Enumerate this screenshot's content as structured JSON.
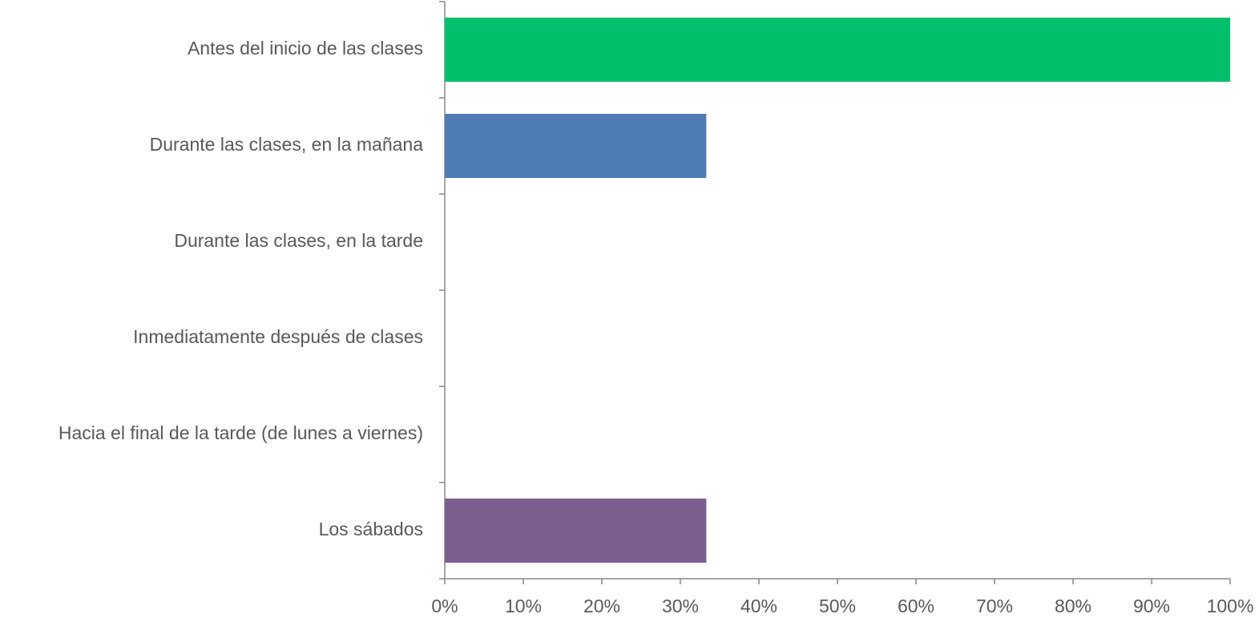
{
  "chart_data": {
    "type": "bar",
    "orientation": "horizontal",
    "categories": [
      "Antes del inicio de las clases",
      "Durante las clases, en la mañana",
      "Durante las clases, en la tarde",
      "Inmediatamente después de clases",
      "Hacia el final de la tarde (de lunes a viernes)",
      "Los sábados"
    ],
    "values": [
      100,
      33.3,
      0,
      0,
      0,
      33.3
    ],
    "colors": [
      "#00c06b",
      "#4f7cb5",
      null,
      null,
      null,
      "#7b5f8f"
    ],
    "xlim": [
      0,
      100
    ],
    "xticks": [
      {
        "value": 0,
        "label": "0%"
      },
      {
        "value": 10,
        "label": "10%"
      },
      {
        "value": 20,
        "label": "20%"
      },
      {
        "value": 30,
        "label": "30%"
      },
      {
        "value": 40,
        "label": "40%"
      },
      {
        "value": 50,
        "label": "50%"
      },
      {
        "value": 60,
        "label": "60%"
      },
      {
        "value": 70,
        "label": "70%"
      },
      {
        "value": 80,
        "label": "80%"
      },
      {
        "value": 90,
        "label": "90%"
      },
      {
        "value": 100,
        "label": "100%"
      }
    ],
    "grid": false
  }
}
